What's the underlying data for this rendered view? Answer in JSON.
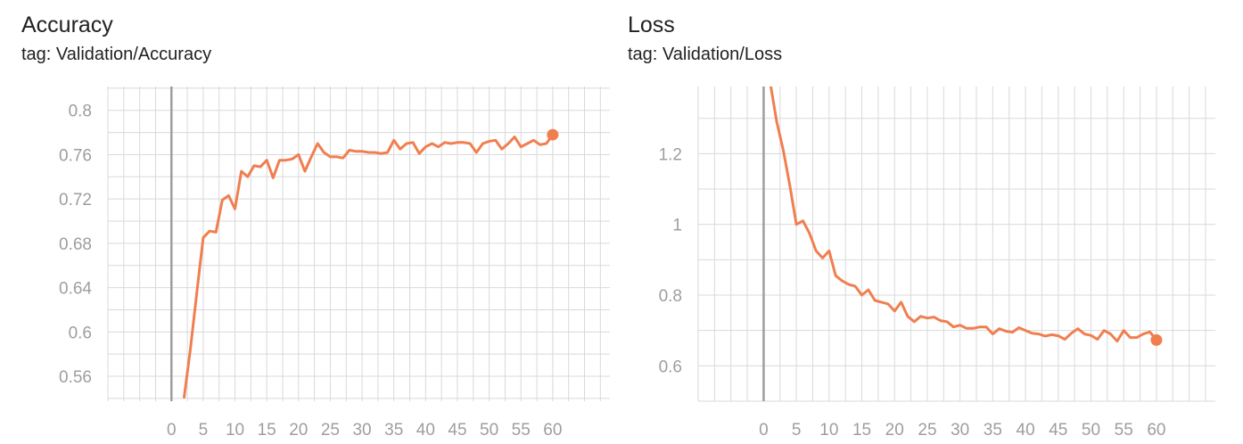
{
  "chart_data": [
    {
      "type": "line",
      "title": "Accuracy",
      "subtitle": "tag: Validation/Accuracy",
      "xlabel": "",
      "ylabel": "",
      "xlim": [
        -10,
        69
      ],
      "ylim": [
        0.5375,
        0.8215
      ],
      "x_ticks": [
        0,
        5,
        10,
        15,
        20,
        25,
        30,
        35,
        40,
        45,
        50,
        55,
        60
      ],
      "y_ticks": [
        0.56,
        0.6,
        0.64,
        0.68,
        0.72,
        0.76,
        0.8
      ],
      "y_tick_labels": [
        "0.56",
        "0.6",
        "0.64",
        "0.68",
        "0.72",
        "0.76",
        "0.8"
      ],
      "grid": true,
      "color": "#f07f50",
      "series": [
        {
          "x": [
            2,
            3,
            4,
            5,
            6,
            7,
            8,
            9,
            10,
            11,
            12,
            13,
            14,
            15,
            16,
            17,
            18,
            19,
            20,
            21,
            22,
            23,
            24,
            25,
            26,
            27,
            28,
            29,
            30,
            31,
            32,
            33,
            34,
            35,
            36,
            37,
            38,
            39,
            40,
            41,
            42,
            43,
            44,
            45,
            46,
            47,
            48,
            49,
            50,
            51,
            52,
            53,
            54,
            55,
            56,
            57,
            58,
            59,
            60
          ],
          "y": [
            0.541,
            0.585,
            0.636,
            0.685,
            0.691,
            0.69,
            0.719,
            0.723,
            0.711,
            0.745,
            0.74,
            0.75,
            0.749,
            0.755,
            0.739,
            0.755,
            0.755,
            0.756,
            0.76,
            0.745,
            0.758,
            0.77,
            0.762,
            0.758,
            0.758,
            0.757,
            0.764,
            0.763,
            0.763,
            0.762,
            0.762,
            0.761,
            0.762,
            0.773,
            0.765,
            0.77,
            0.771,
            0.761,
            0.767,
            0.77,
            0.767,
            0.771,
            0.77,
            0.771,
            0.771,
            0.77,
            0.762,
            0.77,
            0.772,
            0.773,
            0.765,
            0.77,
            0.776,
            0.767,
            0.77,
            0.773,
            0.769,
            0.77,
            0.778
          ]
        }
      ]
    },
    {
      "type": "line",
      "title": "Loss",
      "subtitle": "tag: Validation/Loss",
      "xlabel": "",
      "ylabel": "",
      "xlim": [
        -10,
        69
      ],
      "ylim": [
        0.5,
        1.39
      ],
      "x_ticks": [
        0,
        5,
        10,
        15,
        20,
        25,
        30,
        35,
        40,
        45,
        50,
        55,
        60
      ],
      "y_ticks": [
        0.6,
        0.8,
        1.0,
        1.2
      ],
      "y_tick_labels": [
        "0.6",
        "0.8",
        "1",
        "1.2"
      ],
      "grid": true,
      "color": "#f07f50",
      "series": [
        {
          "x": [
            1,
            2,
            3,
            4,
            5,
            6,
            7,
            8,
            9,
            10,
            11,
            12,
            13,
            14,
            15,
            16,
            17,
            18,
            19,
            20,
            21,
            22,
            23,
            24,
            25,
            26,
            27,
            28,
            29,
            30,
            31,
            32,
            33,
            34,
            35,
            36,
            37,
            38,
            39,
            40,
            41,
            42,
            43,
            44,
            45,
            46,
            47,
            48,
            49,
            50,
            51,
            52,
            53,
            54,
            55,
            56,
            57,
            58,
            59,
            60
          ],
          "y": [
            1.4,
            1.29,
            1.21,
            1.11,
            1.0,
            1.01,
            0.975,
            0.925,
            0.905,
            0.925,
            0.855,
            0.84,
            0.83,
            0.825,
            0.8,
            0.815,
            0.785,
            0.78,
            0.775,
            0.755,
            0.78,
            0.74,
            0.725,
            0.74,
            0.735,
            0.738,
            0.728,
            0.725,
            0.71,
            0.715,
            0.706,
            0.706,
            0.71,
            0.71,
            0.69,
            0.705,
            0.698,
            0.695,
            0.708,
            0.7,
            0.692,
            0.69,
            0.684,
            0.688,
            0.685,
            0.675,
            0.692,
            0.705,
            0.69,
            0.686,
            0.675,
            0.7,
            0.69,
            0.67,
            0.7,
            0.68,
            0.68,
            0.69,
            0.696,
            0.673
          ]
        }
      ]
    }
  ]
}
